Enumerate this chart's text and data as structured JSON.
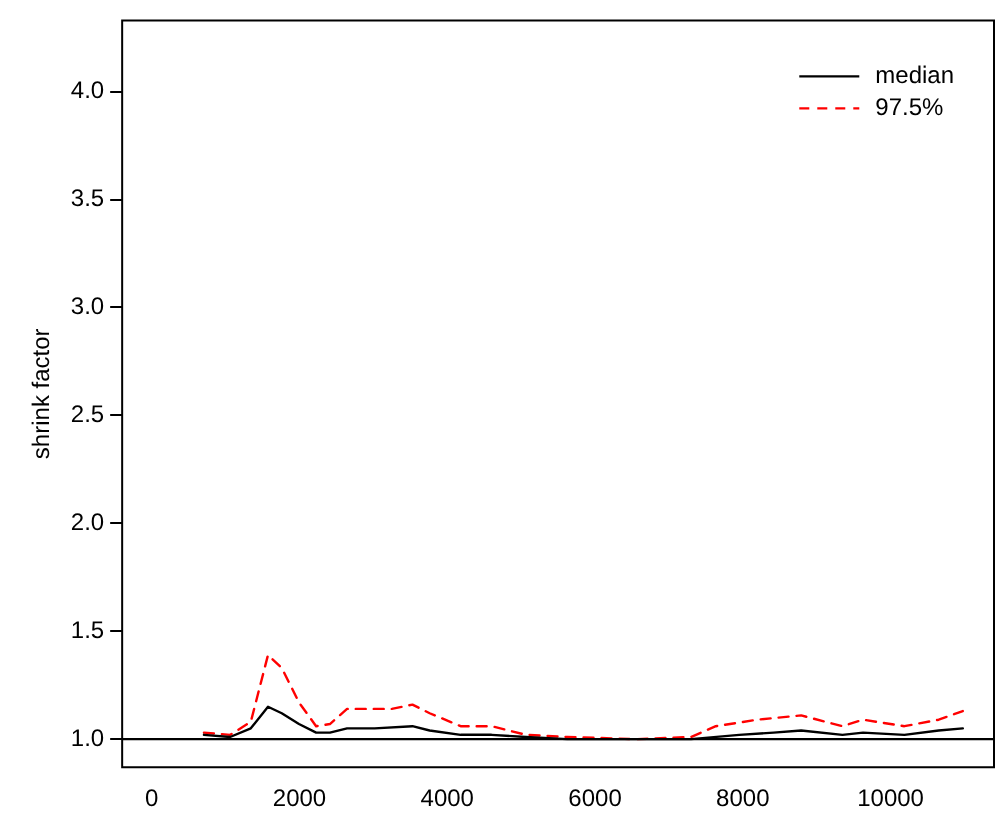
{
  "chart_data": {
    "type": "line",
    "ylabel": "shrink factor",
    "xlim": [
      -400,
      11400
    ],
    "ylim": [
      0.87,
      4.33
    ],
    "xticks": [
      0,
      2000,
      4000,
      6000,
      8000,
      10000
    ],
    "yticks": [
      {
        "value": 1,
        "label": "1.0"
      },
      {
        "value": 1.5,
        "label": "1.5"
      },
      {
        "value": 2,
        "label": "2.0"
      },
      {
        "value": 2.5,
        "label": "2.5"
      },
      {
        "value": 3,
        "label": "3.0"
      },
      {
        "value": 3.5,
        "label": "3.5"
      },
      {
        "value": 4,
        "label": "4.0"
      }
    ],
    "grid": false,
    "legend": "top right",
    "marker": "none",
    "ref_lines": [
      {
        "axis": "y",
        "value": 1,
        "color": "#000000"
      }
    ],
    "series": [
      {
        "name": "median",
        "color": "#000000",
        "line_style": "solid",
        "x": [
          707,
          1061,
          1341,
          1574,
          1760,
          1993,
          2225,
          2412,
          2644,
          3017,
          3529,
          3762,
          4181,
          4600,
          5066,
          5624,
          6555,
          7300,
          7952,
          8417,
          8790,
          9349,
          9628,
          10187,
          10652,
          10978
        ],
        "values": [
          1.02,
          1.01,
          1.05,
          1.15,
          1.12,
          1.07,
          1.03,
          1.03,
          1.05,
          1.05,
          1.06,
          1.04,
          1.02,
          1.02,
          1.01,
          1.0,
          1.0,
          1.0,
          1.02,
          1.03,
          1.04,
          1.02,
          1.03,
          1.02,
          1.04,
          1.05
        ]
      },
      {
        "name": "97.5%",
        "color": "#ff0000",
        "line_style": "dashed",
        "x": [
          707,
          1061,
          1341,
          1574,
          1760,
          1993,
          2225,
          2412,
          2644,
          3017,
          3250,
          3529,
          3762,
          4181,
          4600,
          5066,
          5624,
          6555,
          7300,
          7635,
          8194,
          8790,
          9349,
          9628,
          10187,
          10652,
          10978
        ],
        "values": [
          1.03,
          1.02,
          1.08,
          1.39,
          1.33,
          1.17,
          1.06,
          1.07,
          1.14,
          1.14,
          1.14,
          1.16,
          1.12,
          1.06,
          1.06,
          1.02,
          1.01,
          1.0,
          1.01,
          1.06,
          1.09,
          1.11,
          1.06,
          1.09,
          1.06,
          1.09,
          1.13
        ]
      }
    ]
  }
}
